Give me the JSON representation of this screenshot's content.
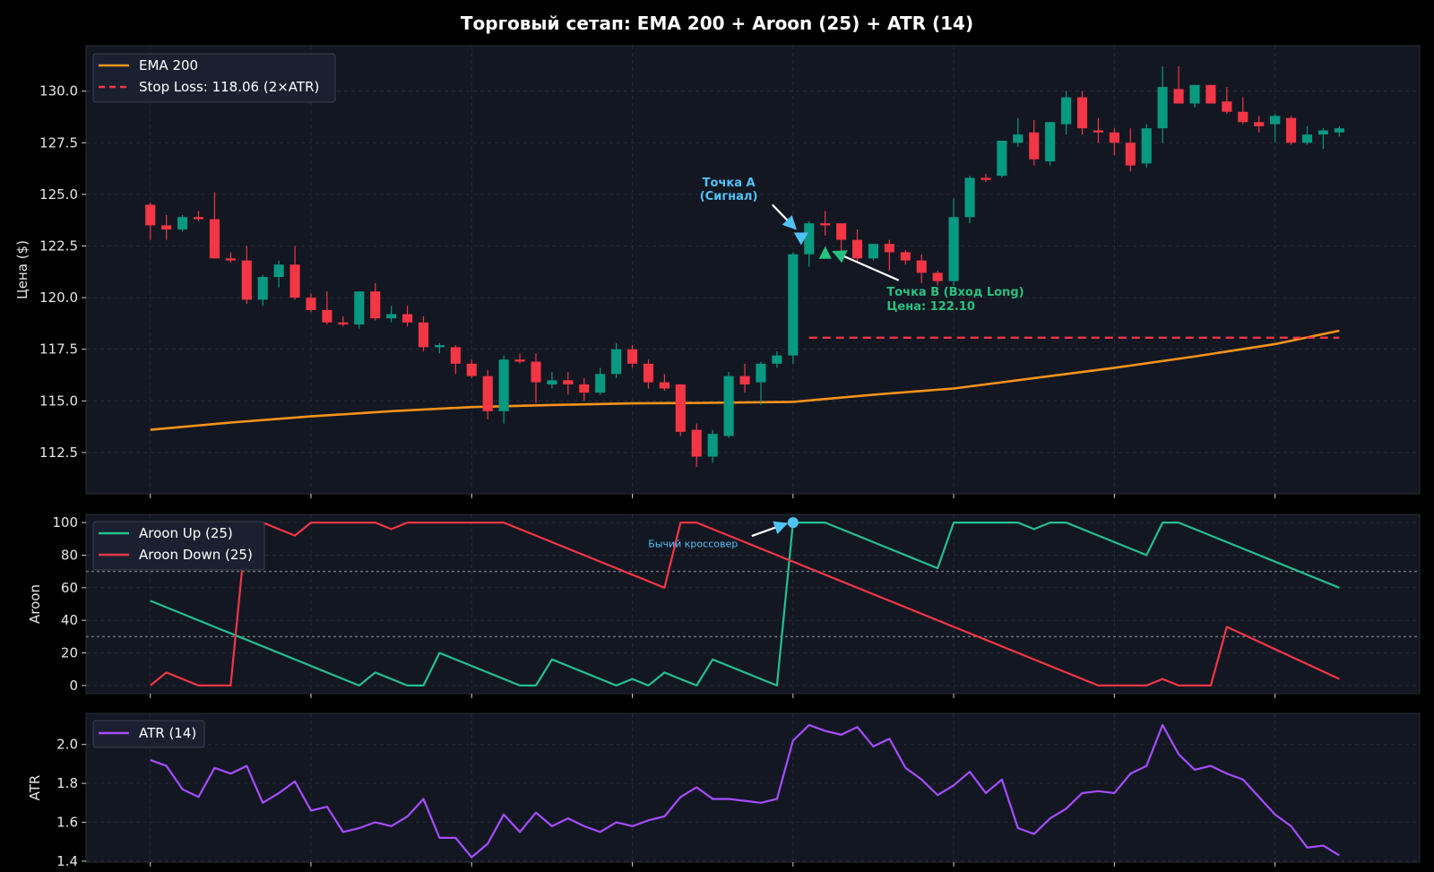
{
  "title": "Торговый сетап: EMA 200 + Aroon (25) + ATR (14)",
  "colors": {
    "background": "#000000",
    "panel": "#131722",
    "grid": "#2a2e39",
    "up": "#089981",
    "down": "#f23645",
    "ema": "#f7931a",
    "stop": "#f23645",
    "aroon_up": "#22c08e",
    "aroon_down": "#f23645",
    "atr": "#a64dff",
    "signal": "#4fc3f7",
    "entry": "#26c281",
    "text": "#e6e6e6"
  },
  "chart_data": [
    {
      "type": "candlestick",
      "ylabel": "Цена ($)",
      "ylim": [
        110.5,
        132.2
      ],
      "yticks": [
        "112.5",
        "115.0",
        "117.5",
        "120.0",
        "122.5",
        "125.0",
        "127.5",
        "130.0"
      ],
      "x_range": [
        -4,
        79
      ],
      "legend": [
        "EMA 200",
        "Stop Loss: 118.06 (2×ATR)"
      ],
      "legend_placement": "top-left",
      "candles": [
        [
          124.5,
          124.6,
          122.8,
          123.5
        ],
        [
          123.5,
          124.0,
          122.8,
          123.3
        ],
        [
          123.3,
          124.0,
          123.2,
          123.9
        ],
        [
          123.9,
          124.2,
          123.7,
          123.8
        ],
        [
          123.8,
          125.1,
          121.9,
          121.9
        ],
        [
          121.9,
          122.2,
          121.7,
          121.8
        ],
        [
          121.8,
          122.5,
          119.7,
          119.9
        ],
        [
          119.9,
          121.1,
          119.6,
          121.0
        ],
        [
          121.0,
          121.8,
          120.5,
          121.6
        ],
        [
          121.6,
          122.5,
          119.9,
          120.0
        ],
        [
          120.0,
          120.2,
          119.3,
          119.4
        ],
        [
          119.4,
          120.3,
          118.7,
          118.8
        ],
        [
          118.8,
          119.1,
          118.6,
          118.7
        ],
        [
          118.7,
          120.3,
          118.5,
          120.3
        ],
        [
          120.3,
          120.7,
          118.9,
          119.0
        ],
        [
          119.0,
          119.6,
          118.8,
          119.2
        ],
        [
          119.2,
          119.6,
          118.6,
          118.8
        ],
        [
          118.8,
          119.1,
          117.4,
          117.6
        ],
        [
          117.6,
          117.8,
          117.3,
          117.7
        ],
        [
          117.6,
          117.7,
          116.3,
          116.8
        ],
        [
          116.8,
          117.0,
          116.1,
          116.2
        ],
        [
          116.2,
          116.5,
          114.1,
          114.5
        ],
        [
          114.5,
          117.2,
          113.9,
          117.0
        ],
        [
          117.0,
          117.3,
          116.8,
          116.9
        ],
        [
          116.9,
          117.3,
          114.9,
          115.9
        ],
        [
          115.8,
          116.4,
          115.6,
          116.0
        ],
        [
          116.0,
          116.4,
          115.3,
          115.8
        ],
        [
          115.8,
          116.1,
          115.0,
          115.4
        ],
        [
          115.4,
          116.6,
          115.3,
          116.3
        ],
        [
          116.3,
          117.8,
          116.1,
          117.5
        ],
        [
          117.5,
          117.7,
          116.6,
          116.8
        ],
        [
          116.8,
          117.0,
          115.6,
          115.9
        ],
        [
          115.9,
          116.3,
          115.5,
          115.6
        ],
        [
          115.8,
          115.8,
          113.3,
          113.5
        ],
        [
          113.6,
          113.9,
          111.8,
          112.3
        ],
        [
          112.3,
          113.6,
          112.0,
          113.4
        ],
        [
          113.3,
          116.4,
          113.2,
          116.2
        ],
        [
          116.2,
          116.8,
          115.4,
          115.8
        ],
        [
          115.9,
          116.9,
          114.8,
          116.8
        ],
        [
          116.8,
          117.4,
          116.6,
          117.2
        ],
        [
          117.2,
          122.2,
          116.8,
          122.1
        ],
        [
          122.1,
          123.7,
          121.5,
          123.6
        ],
        [
          123.6,
          124.2,
          123.0,
          123.5
        ],
        [
          123.6,
          123.6,
          122.2,
          122.8
        ],
        [
          122.8,
          123.3,
          121.7,
          121.9
        ],
        [
          121.9,
          122.6,
          121.8,
          122.6
        ],
        [
          122.6,
          122.8,
          121.3,
          122.2
        ],
        [
          122.2,
          122.3,
          121.6,
          121.8
        ],
        [
          121.8,
          122.1,
          120.7,
          121.2
        ],
        [
          121.2,
          121.3,
          120.6,
          120.8
        ],
        [
          120.8,
          124.8,
          120.6,
          123.9
        ],
        [
          123.9,
          125.9,
          123.6,
          125.8
        ],
        [
          125.8,
          126.0,
          125.6,
          125.7
        ],
        [
          125.9,
          127.6,
          125.8,
          127.6
        ],
        [
          127.5,
          128.7,
          127.3,
          127.9
        ],
        [
          128.0,
          128.6,
          126.4,
          126.7
        ],
        [
          126.6,
          128.5,
          126.4,
          128.5
        ],
        [
          128.4,
          130.0,
          127.9,
          129.7
        ],
        [
          129.7,
          130.0,
          127.9,
          128.2
        ],
        [
          128.1,
          128.7,
          127.5,
          128.0
        ],
        [
          128.0,
          128.2,
          126.9,
          127.5
        ],
        [
          127.5,
          128.2,
          126.1,
          126.4
        ],
        [
          126.5,
          128.4,
          126.3,
          128.2
        ],
        [
          128.2,
          131.2,
          127.5,
          130.2
        ],
        [
          130.1,
          131.2,
          129.4,
          129.4
        ],
        [
          129.4,
          130.3,
          129.2,
          130.3
        ],
        [
          130.3,
          130.3,
          129.4,
          129.4
        ],
        [
          129.5,
          130.2,
          128.9,
          129.0
        ],
        [
          129.0,
          129.7,
          128.4,
          128.5
        ],
        [
          128.5,
          128.8,
          128.0,
          128.3
        ],
        [
          128.4,
          128.9,
          127.5,
          128.8
        ],
        [
          128.7,
          128.8,
          127.4,
          127.5
        ],
        [
          127.5,
          128.3,
          127.4,
          127.9
        ],
        [
          127.9,
          128.2,
          127.2,
          128.1
        ],
        [
          128.0,
          128.3,
          127.8,
          128.2
        ]
      ],
      "ema_series": {
        "name": "EMA 200",
        "points": [
          [
            0,
            113.6
          ],
          [
            5,
            113.95
          ],
          [
            10,
            114.25
          ],
          [
            15,
            114.5
          ],
          [
            20,
            114.7
          ],
          [
            25,
            114.8
          ],
          [
            30,
            114.88
          ],
          [
            34,
            114.9
          ],
          [
            40,
            114.95
          ],
          [
            45,
            115.3
          ],
          [
            50,
            115.6
          ],
          [
            55,
            116.1
          ],
          [
            60,
            116.6
          ],
          [
            65,
            117.15
          ],
          [
            70,
            117.75
          ],
          [
            74,
            118.4
          ]
        ]
      },
      "stop_loss": {
        "value": 118.06,
        "x_start": 41,
        "x_end": 74
      },
      "annotations": [
        {
          "label": "Точка A\n(Сигнал)",
          "x": 40.5,
          "y": 122.85,
          "text_x": 36,
          "text_y": 125.0,
          "marker": "down-triangle"
        },
        {
          "label": "Точка B (Вход Long)\nЦена: 122.10",
          "x": 41,
          "y": 122.1,
          "text_x": 46,
          "text_y": 120.0,
          "marker": "up-triangle"
        }
      ]
    },
    {
      "type": "line",
      "ylabel": "Aroon",
      "ylim": [
        -5,
        105
      ],
      "yticks": [
        "0",
        "20",
        "40",
        "60",
        "80",
        "100"
      ],
      "x_range": [
        -4,
        79
      ],
      "reference_lines": [
        70,
        30
      ],
      "legend_placement": "top-left",
      "series": [
        {
          "name": "Aroon Up (25)",
          "points": [
            [
              0,
              52
            ],
            [
              13,
              0
            ],
            [
              14,
              8
            ],
            [
              16,
              0
            ],
            [
              17,
              0
            ],
            [
              18,
              20
            ],
            [
              23,
              0
            ],
            [
              24,
              0
            ],
            [
              25,
              16
            ],
            [
              29,
              0
            ],
            [
              30,
              4
            ],
            [
              31,
              0
            ],
            [
              32,
              8
            ],
            [
              34,
              0
            ],
            [
              35,
              16
            ],
            [
              39,
              0
            ],
            [
              40,
              100
            ],
            [
              42,
              100
            ],
            [
              49,
              72
            ],
            [
              50,
              100
            ],
            [
              54,
              100
            ],
            [
              55,
              96
            ],
            [
              56,
              100
            ],
            [
              57,
              100
            ],
            [
              62,
              80
            ],
            [
              63,
              100
            ],
            [
              64,
              100
            ],
            [
              74,
              60
            ]
          ]
        },
        {
          "name": "Aroon Down (25)",
          "points": [
            [
              0,
              0
            ],
            [
              1,
              8
            ],
            [
              3,
              0
            ],
            [
              5,
              0
            ],
            [
              6,
              100
            ],
            [
              7,
              100
            ],
            [
              9,
              92
            ],
            [
              10,
              100
            ],
            [
              14,
              100
            ],
            [
              15,
              96
            ],
            [
              16,
              100
            ],
            [
              22,
              100
            ],
            [
              32,
              60
            ],
            [
              33,
              100
            ],
            [
              34,
              100
            ],
            [
              59,
              0
            ],
            [
              62,
              0
            ],
            [
              63,
              4
            ],
            [
              64,
              0
            ],
            [
              66,
              0
            ],
            [
              67,
              36
            ],
            [
              74,
              4
            ]
          ]
        }
      ],
      "annotations": [
        {
          "label": "Бычий кроссовер",
          "x": 40,
          "y": 100,
          "text_x": 34,
          "text_y": 86
        }
      ]
    },
    {
      "type": "line",
      "ylabel": "ATR",
      "ylim": [
        1.395,
        2.16
      ],
      "yticks": [
        "1.4",
        "1.6",
        "1.8",
        "2.0"
      ],
      "x_range": [
        -4,
        79
      ],
      "legend_placement": "top-left",
      "series": [
        {
          "name": "ATR (14)",
          "values": [
            1.92,
            1.89,
            1.77,
            1.73,
            1.88,
            1.85,
            1.89,
            1.7,
            1.75,
            1.81,
            1.66,
            1.68,
            1.55,
            1.57,
            1.6,
            1.58,
            1.63,
            1.72,
            1.52,
            1.52,
            1.42,
            1.49,
            1.64,
            1.55,
            1.65,
            1.58,
            1.62,
            1.58,
            1.55,
            1.6,
            1.58,
            1.61,
            1.63,
            1.73,
            1.78,
            1.72,
            1.72,
            1.71,
            1.7,
            1.72,
            2.02,
            2.1,
            2.07,
            2.05,
            2.09,
            1.99,
            2.03,
            1.88,
            1.82,
            1.74,
            1.79,
            1.86,
            1.75,
            1.82,
            1.57,
            1.54,
            1.62,
            1.67,
            1.75,
            1.76,
            1.75,
            1.85,
            1.89,
            2.1,
            1.95,
            1.87,
            1.89,
            1.85,
            1.82,
            1.73,
            1.64,
            1.58,
            1.47,
            1.48,
            1.43
          ]
        }
      ]
    }
  ]
}
